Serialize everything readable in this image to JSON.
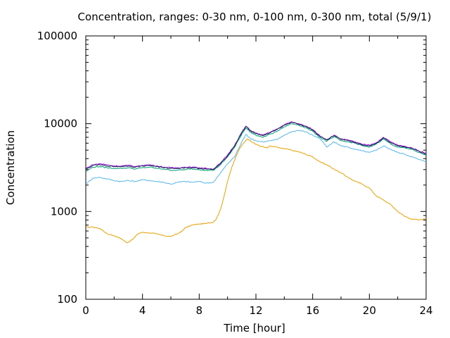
{
  "chart_data": {
    "type": "line",
    "title": "Concentration, ranges: 0-30 nm, 0-100 nm, 0-300 nm, total (5/9/1)",
    "xlabel": "Time [hour]",
    "ylabel": "Concentration",
    "xlim": [
      0,
      24
    ],
    "ylim": [
      100,
      100000
    ],
    "yscale": "log",
    "grid": false,
    "xticks": [
      0,
      4,
      8,
      12,
      16,
      20,
      24
    ],
    "xtick_labels": [
      "0",
      "4",
      "8",
      "12",
      "16",
      "20",
      "24"
    ],
    "yticks": [
      100,
      1000,
      10000,
      100000
    ],
    "ytick_labels": [
      "100",
      "1000",
      "10000",
      "100000"
    ],
    "series": [
      {
        "range": "0-30 nm",
        "color": "#e69f00",
        "x": [
          0,
          0.5,
          1,
          1.5,
          2,
          2.5,
          2.9,
          3.3,
          3.7,
          4,
          4.5,
          5,
          5.5,
          6,
          6.5,
          6.8,
          7,
          7.5,
          8,
          8.5,
          9,
          9.2,
          9.5,
          9.8,
          10,
          10.3,
          10.6,
          10.9,
          11.2,
          11.4,
          11.7,
          12,
          12.4,
          12.8,
          13,
          13.5,
          14,
          14.5,
          15,
          15.5,
          16,
          16.5,
          17,
          17.5,
          18,
          18.5,
          19,
          19.5,
          20,
          20.5,
          21,
          21.5,
          22,
          22.5,
          23,
          23.5,
          24
        ],
        "y": [
          660,
          665,
          640,
          560,
          530,
          490,
          440,
          480,
          560,
          580,
          570,
          555,
          530,
          520,
          560,
          600,
          650,
          700,
          720,
          730,
          760,
          820,
          1050,
          1600,
          2200,
          3200,
          4300,
          5400,
          6200,
          6700,
          6200,
          5800,
          5500,
          5300,
          5600,
          5400,
          5200,
          5000,
          4800,
          4500,
          4200,
          3700,
          3400,
          3050,
          2750,
          2450,
          2200,
          2050,
          1850,
          1500,
          1350,
          1200,
          1000,
          880,
          820,
          800,
          830
        ]
      },
      {
        "range": "0-100 nm",
        "color": "#56b4e9",
        "x": [
          0,
          0.5,
          1,
          1.5,
          2,
          2.5,
          3,
          3.5,
          4,
          4.5,
          5,
          5.5,
          6,
          6.5,
          7,
          7.5,
          8,
          8.5,
          9,
          9.5,
          10,
          10.5,
          11,
          11.3,
          11.6,
          12,
          12.5,
          13,
          13.5,
          14,
          14.5,
          15,
          15.5,
          16,
          16.5,
          17,
          17.5,
          18,
          18.5,
          19,
          19.5,
          20,
          20.5,
          21,
          21.5,
          22,
          22.5,
          23,
          23.5,
          24
        ],
        "y": [
          2050,
          2400,
          2450,
          2350,
          2250,
          2200,
          2250,
          2200,
          2300,
          2250,
          2200,
          2150,
          2050,
          2150,
          2200,
          2150,
          2200,
          2100,
          2150,
          2750,
          3500,
          4200,
          6200,
          7600,
          6800,
          6400,
          6200,
          6400,
          6600,
          7400,
          8100,
          8400,
          8100,
          7400,
          6800,
          5400,
          6200,
          5600,
          5400,
          5100,
          4900,
          4700,
          5000,
          5600,
          5100,
          4700,
          4500,
          4200,
          3900,
          3700
        ]
      },
      {
        "range": "0-300 nm",
        "color": "#009e73",
        "x": [
          0,
          0.5,
          1,
          1.5,
          2,
          2.5,
          3,
          3.5,
          4,
          4.5,
          5,
          5.5,
          6,
          6.5,
          7,
          7.5,
          8,
          8.5,
          9,
          9.5,
          10,
          10.5,
          11,
          11.3,
          11.6,
          12,
          12.5,
          13,
          13.5,
          14,
          14.5,
          15,
          15.5,
          16,
          16.5,
          17,
          17.5,
          18,
          18.5,
          19,
          19.5,
          20,
          20.5,
          21,
          21.5,
          22,
          22.5,
          23,
          23.5,
          24
        ],
        "y": [
          2850,
          3200,
          3250,
          3150,
          3100,
          3100,
          3150,
          3050,
          3150,
          3200,
          3100,
          3050,
          2950,
          2950,
          3000,
          3050,
          3000,
          2950,
          2950,
          3400,
          4200,
          5400,
          7600,
          9000,
          8000,
          7400,
          7000,
          7600,
          8200,
          9200,
          10000,
          9700,
          9000,
          8200,
          7000,
          6300,
          7100,
          6400,
          6200,
          6000,
          5600,
          5400,
          5900,
          6700,
          5900,
          5400,
          5300,
          5100,
          4700,
          4400
        ]
      },
      {
        "range": "total",
        "color": "#9400d3",
        "x": [
          0,
          0.5,
          1,
          1.5,
          2,
          2.5,
          3,
          3.5,
          4,
          4.5,
          5,
          5.5,
          6,
          6.5,
          7,
          7.5,
          8,
          8.5,
          9,
          9.5,
          10,
          10.5,
          11,
          11.3,
          11.6,
          12,
          12.5,
          13,
          13.5,
          14,
          14.5,
          15,
          15.5,
          16,
          16.5,
          17,
          17.5,
          18,
          18.5,
          19,
          19.5,
          20,
          20.5,
          21,
          21.5,
          22,
          22.5,
          23,
          23.5,
          24
        ],
        "y": [
          3100,
          3400,
          3500,
          3400,
          3300,
          3300,
          3350,
          3250,
          3350,
          3400,
          3300,
          3200,
          3150,
          3150,
          3200,
          3200,
          3150,
          3100,
          3050,
          3550,
          4400,
          5700,
          8000,
          9400,
          8400,
          7800,
          7400,
          8000,
          8700,
          9700,
          10500,
          10000,
          9400,
          8600,
          7300,
          6600,
          7400,
          6700,
          6500,
          6200,
          5800,
          5700,
          6100,
          7000,
          6200,
          5700,
          5500,
          5300,
          4900,
          4600
        ]
      },
      {
        "range": "",
        "color": "#1a2a5a",
        "x": [
          0,
          0.5,
          1,
          1.5,
          2,
          2.5,
          3,
          3.5,
          4,
          4.5,
          5,
          5.5,
          6,
          6.5,
          7,
          7.5,
          8,
          8.5,
          9,
          9.5,
          10,
          10.5,
          11,
          11.3,
          11.6,
          12,
          12.5,
          13,
          13.5,
          14,
          14.5,
          15,
          15.5,
          16,
          16.5,
          17,
          17.5,
          18,
          18.5,
          19,
          19.5,
          20,
          20.5,
          21,
          21.5,
          22,
          22.5,
          23,
          23.5,
          24
        ],
        "y": [
          3000,
          3350,
          3400,
          3300,
          3250,
          3250,
          3300,
          3200,
          3300,
          3350,
          3250,
          3150,
          3100,
          3100,
          3150,
          3150,
          3100,
          3050,
          3000,
          3500,
          4300,
          5600,
          7900,
          9300,
          8300,
          7700,
          7300,
          7900,
          8600,
          9600,
          10400,
          9900,
          9300,
          8500,
          7200,
          6500,
          7300,
          6600,
          6400,
          6100,
          5700,
          5600,
          6000,
          6900,
          6100,
          5600,
          5450,
          5250,
          4850,
          4500
        ]
      }
    ]
  }
}
